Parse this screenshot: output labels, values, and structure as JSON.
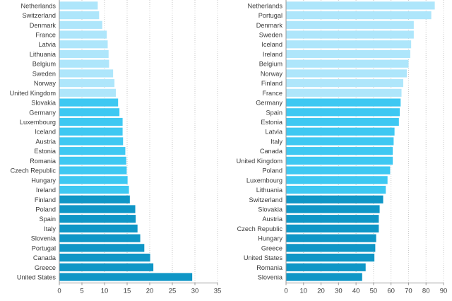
{
  "colors": {
    "light": "#aee6fb",
    "mid": "#3ec8f2",
    "dark": "#0f96c6",
    "grid": "#c9c9c9",
    "axis": "#9a9a9a",
    "text": "#3a3a3a"
  },
  "chart_data": [
    {
      "type": "bar",
      "orientation": "horizontal",
      "xlim": [
        0,
        35
      ],
      "xticks": [
        0,
        5,
        10,
        15,
        20,
        25,
        30,
        35
      ],
      "grid": "vertical dotted",
      "categories": [
        "Netherlands",
        "Switzerland",
        "Denmark",
        "France",
        "Latvia",
        "Lithuania",
        "Belgium",
        "Sweden",
        "Norway",
        "United Kingdom",
        "Slovakia",
        "Germany",
        "Luxembourg",
        "Iceland",
        "Austria",
        "Estonia",
        "Romania",
        "Czech Republic",
        "Hungary",
        "Ireland",
        "Finland",
        "Poland",
        "Spain",
        "Italy",
        "Slovenia",
        "Portugal",
        "Canada",
        "Greece",
        "United States"
      ],
      "values": [
        8.5,
        8.8,
        9.5,
        10.5,
        10.7,
        10.9,
        11.0,
        11.9,
        12.2,
        12.5,
        13.0,
        13.3,
        14.0,
        14.0,
        14.1,
        14.6,
        14.8,
        14.9,
        15.1,
        15.4,
        15.6,
        16.8,
        16.9,
        17.3,
        17.9,
        18.8,
        20.1,
        20.8,
        29.4
      ],
      "color_group": [
        "light",
        "light",
        "light",
        "light",
        "light",
        "light",
        "light",
        "light",
        "light",
        "light",
        "mid",
        "mid",
        "mid",
        "mid",
        "mid",
        "mid",
        "mid",
        "mid",
        "mid",
        "mid",
        "dark",
        "dark",
        "dark",
        "dark",
        "dark",
        "dark",
        "dark",
        "dark",
        "dark"
      ]
    },
    {
      "type": "bar",
      "orientation": "horizontal",
      "xlim": [
        0,
        90
      ],
      "xticks": [
        0,
        10,
        20,
        30,
        40,
        50,
        60,
        70,
        80,
        90
      ],
      "grid": "vertical dotted",
      "categories": [
        "Netherlands",
        "Portugal",
        "Denmark",
        "Sweden",
        "Iceland",
        "Ireland",
        "Belgium",
        "Norway",
        "Finland",
        "France",
        "Germany",
        "Spain",
        "Estonia",
        "Latvia",
        "Italy",
        "Canada",
        "United Kingdom",
        "Poland",
        "Luxembourg",
        "Lithuania",
        "Switzerland",
        "Slovakia",
        "Austria",
        "Czech Republic",
        "Hungary",
        "Greece",
        "United States",
        "Romania",
        "Slovenia"
      ],
      "values": [
        85,
        83,
        73,
        73,
        71.5,
        71,
        70,
        69,
        67,
        66,
        65.5,
        65,
        64.5,
        62,
        61.5,
        61,
        61,
        59.5,
        58,
        57,
        55.5,
        53.5,
        53,
        53,
        51.5,
        51,
        50.5,
        45.5,
        43.5
      ],
      "color_group": [
        "light",
        "light",
        "light",
        "light",
        "light",
        "light",
        "light",
        "light",
        "light",
        "light",
        "mid",
        "mid",
        "mid",
        "mid",
        "mid",
        "mid",
        "mid",
        "mid",
        "mid",
        "mid",
        "dark",
        "dark",
        "dark",
        "dark",
        "dark",
        "dark",
        "dark",
        "dark",
        "dark"
      ]
    }
  ]
}
